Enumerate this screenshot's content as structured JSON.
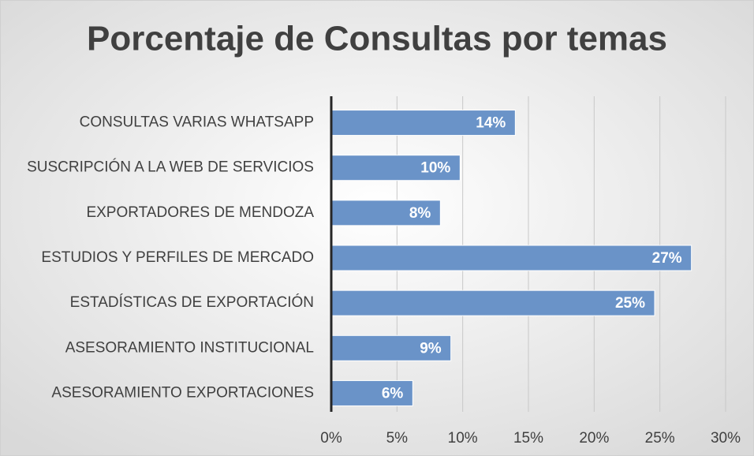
{
  "chart_data": {
    "type": "barh",
    "title": "Porcentaje de Consultas por temas",
    "categories": [
      "CONSULTAS VARIAS WHATSAPP",
      "SUSCRIPCIÓN A LA WEB DE SERVICIOS",
      "EXPORTADORES DE MENDOZA",
      "ESTUDIOS Y PERFILES DE MERCADO",
      "ESTADÍSTICAS DE EXPORTACIÓN",
      "ASESORAMIENTO INSTITUCIONAL",
      "ASESORAMIENTO EXPORTACIONES"
    ],
    "values": [
      14,
      9.8,
      8.3,
      27.4,
      24.6,
      9.1,
      6.2
    ],
    "value_labels": [
      "14%",
      "10%",
      "8%",
      "27%",
      "25%",
      "9%",
      "6%"
    ],
    "color": "#6a93c8",
    "xlim": [
      0,
      30
    ],
    "xticks": [
      {
        "value": 0,
        "label": "0%"
      },
      {
        "value": 5,
        "label": "5%"
      },
      {
        "value": 10,
        "label": "10%"
      },
      {
        "value": 15,
        "label": "15%"
      },
      {
        "value": 20,
        "label": "20%"
      },
      {
        "value": 25,
        "label": "25%"
      },
      {
        "value": 30,
        "label": "30%"
      }
    ],
    "grid": true
  }
}
